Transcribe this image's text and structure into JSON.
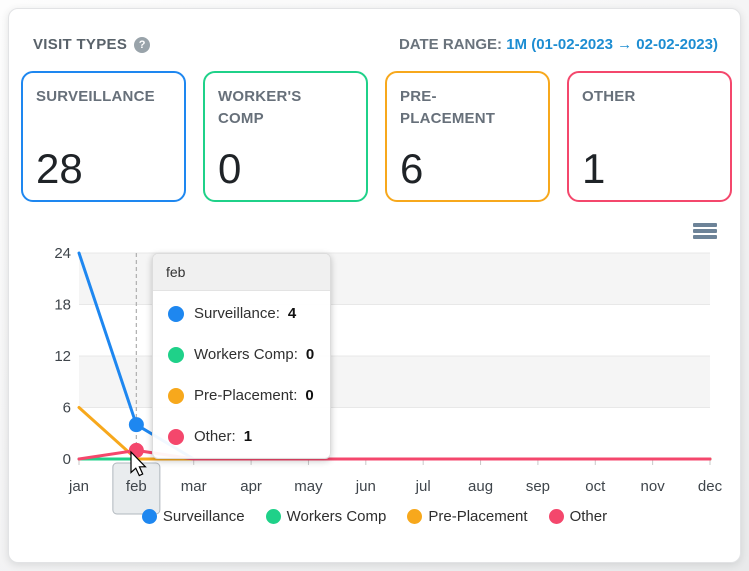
{
  "header": {
    "title": "VISIT TYPES",
    "help_icon": "?",
    "date_range_label": "DATE RANGE:",
    "date_range_value": "1M (01-02-2023 → 02-02-2023)"
  },
  "cards": [
    {
      "label": "SURVEILLANCE",
      "value": "28",
      "color": "#1e87f0"
    },
    {
      "label": "WORKER'S COMP",
      "value": "0",
      "color": "#1fd189"
    },
    {
      "label": "PRE-PLACEMENT",
      "value": "6",
      "color": "#f7a81c"
    },
    {
      "label": "OTHER",
      "value": "1",
      "color": "#f4476c"
    }
  ],
  "chart_data": {
    "type": "line",
    "categories": [
      "jan",
      "feb",
      "mar",
      "apr",
      "may",
      "jun",
      "jul",
      "aug",
      "sep",
      "oct",
      "nov",
      "dec"
    ],
    "ylim": [
      0,
      24
    ],
    "yticks": [
      0,
      6,
      12,
      18,
      24
    ],
    "grid": true,
    "legend_position": "bottom",
    "series": [
      {
        "name": "Surveillance",
        "color": "#1e87f0",
        "values": [
          24,
          4,
          0,
          0,
          0,
          0,
          0,
          0,
          0,
          0,
          0,
          0
        ]
      },
      {
        "name": "Workers Comp",
        "color": "#1fd189",
        "values": [
          0,
          0,
          0,
          0,
          0,
          0,
          0,
          0,
          0,
          0,
          0,
          0
        ]
      },
      {
        "name": "Pre-Placement",
        "color": "#f7a81c",
        "values": [
          6,
          0,
          0,
          0,
          0,
          0,
          0,
          0,
          0,
          0,
          0,
          0
        ]
      },
      {
        "name": "Other",
        "color": "#f4476c",
        "values": [
          0,
          1,
          0,
          0,
          0,
          0,
          0,
          0,
          0,
          0,
          0,
          0
        ]
      }
    ],
    "hover": {
      "category": "feb",
      "category_index": 1
    },
    "tooltip": {
      "title": "feb",
      "rows": [
        {
          "label": "Surveillance:",
          "value": "4"
        },
        {
          "label": "Workers Comp:",
          "value": "0"
        },
        {
          "label": "Pre-Placement:",
          "value": "0"
        },
        {
          "label": "Other:",
          "value": "1"
        }
      ]
    }
  },
  "colors": {
    "band_fill": "#f5f5f5",
    "grid_line": "#e8e8e8",
    "axis_text": "#3f454b",
    "crosshair": "#b3b3b3",
    "hover_label_bg": "#e9ecee",
    "hover_label_border": "#b0b7bd"
  }
}
